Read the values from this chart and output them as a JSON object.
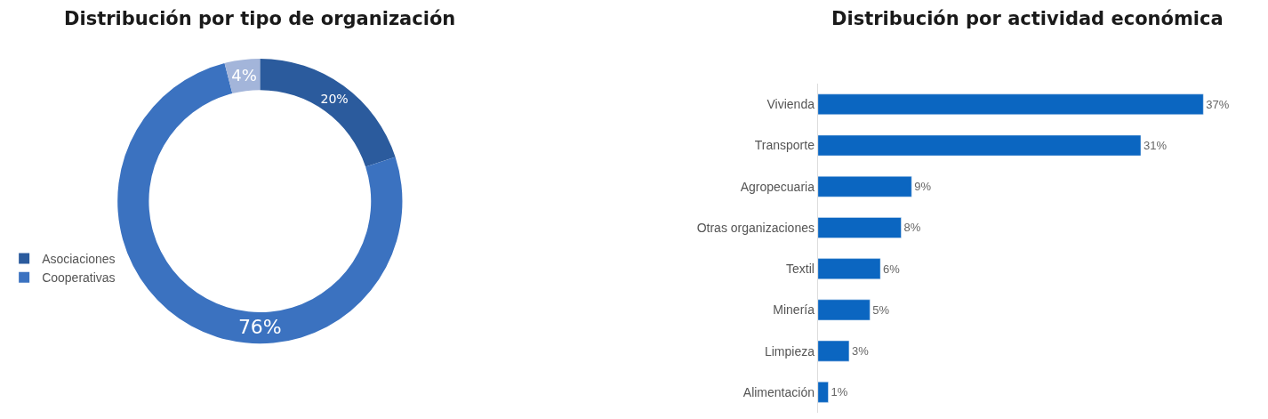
{
  "chart_data": [
    {
      "type": "donut",
      "title": "Distribución por tipo de organización",
      "categories": [
        "Asociaciones",
        "Cooperativas",
        null
      ],
      "values": [
        20,
        76,
        4
      ],
      "value_labels": [
        "20%",
        "76%",
        "4%"
      ],
      "colors": [
        "#2b5b9d",
        "#3b72c0",
        "#a3b5da"
      ],
      "legend": "left"
    },
    {
      "type": "bar",
      "orientation": "horizontal",
      "title": "Distribución por actividad económica",
      "categories": [
        "Vivienda",
        "Transporte",
        "Agropecuaria",
        "Otras organizaciones",
        "Textil",
        "Minería",
        "Limpieza",
        "Alimentación"
      ],
      "values": [
        37,
        31,
        9,
        8,
        6,
        5,
        3,
        1
      ],
      "value_labels": [
        "37%",
        "31%",
        "9%",
        "8%",
        "6%",
        "5%",
        "3%",
        "1%"
      ],
      "color": "#0b66c1",
      "tick_labels": "y"
    }
  ]
}
